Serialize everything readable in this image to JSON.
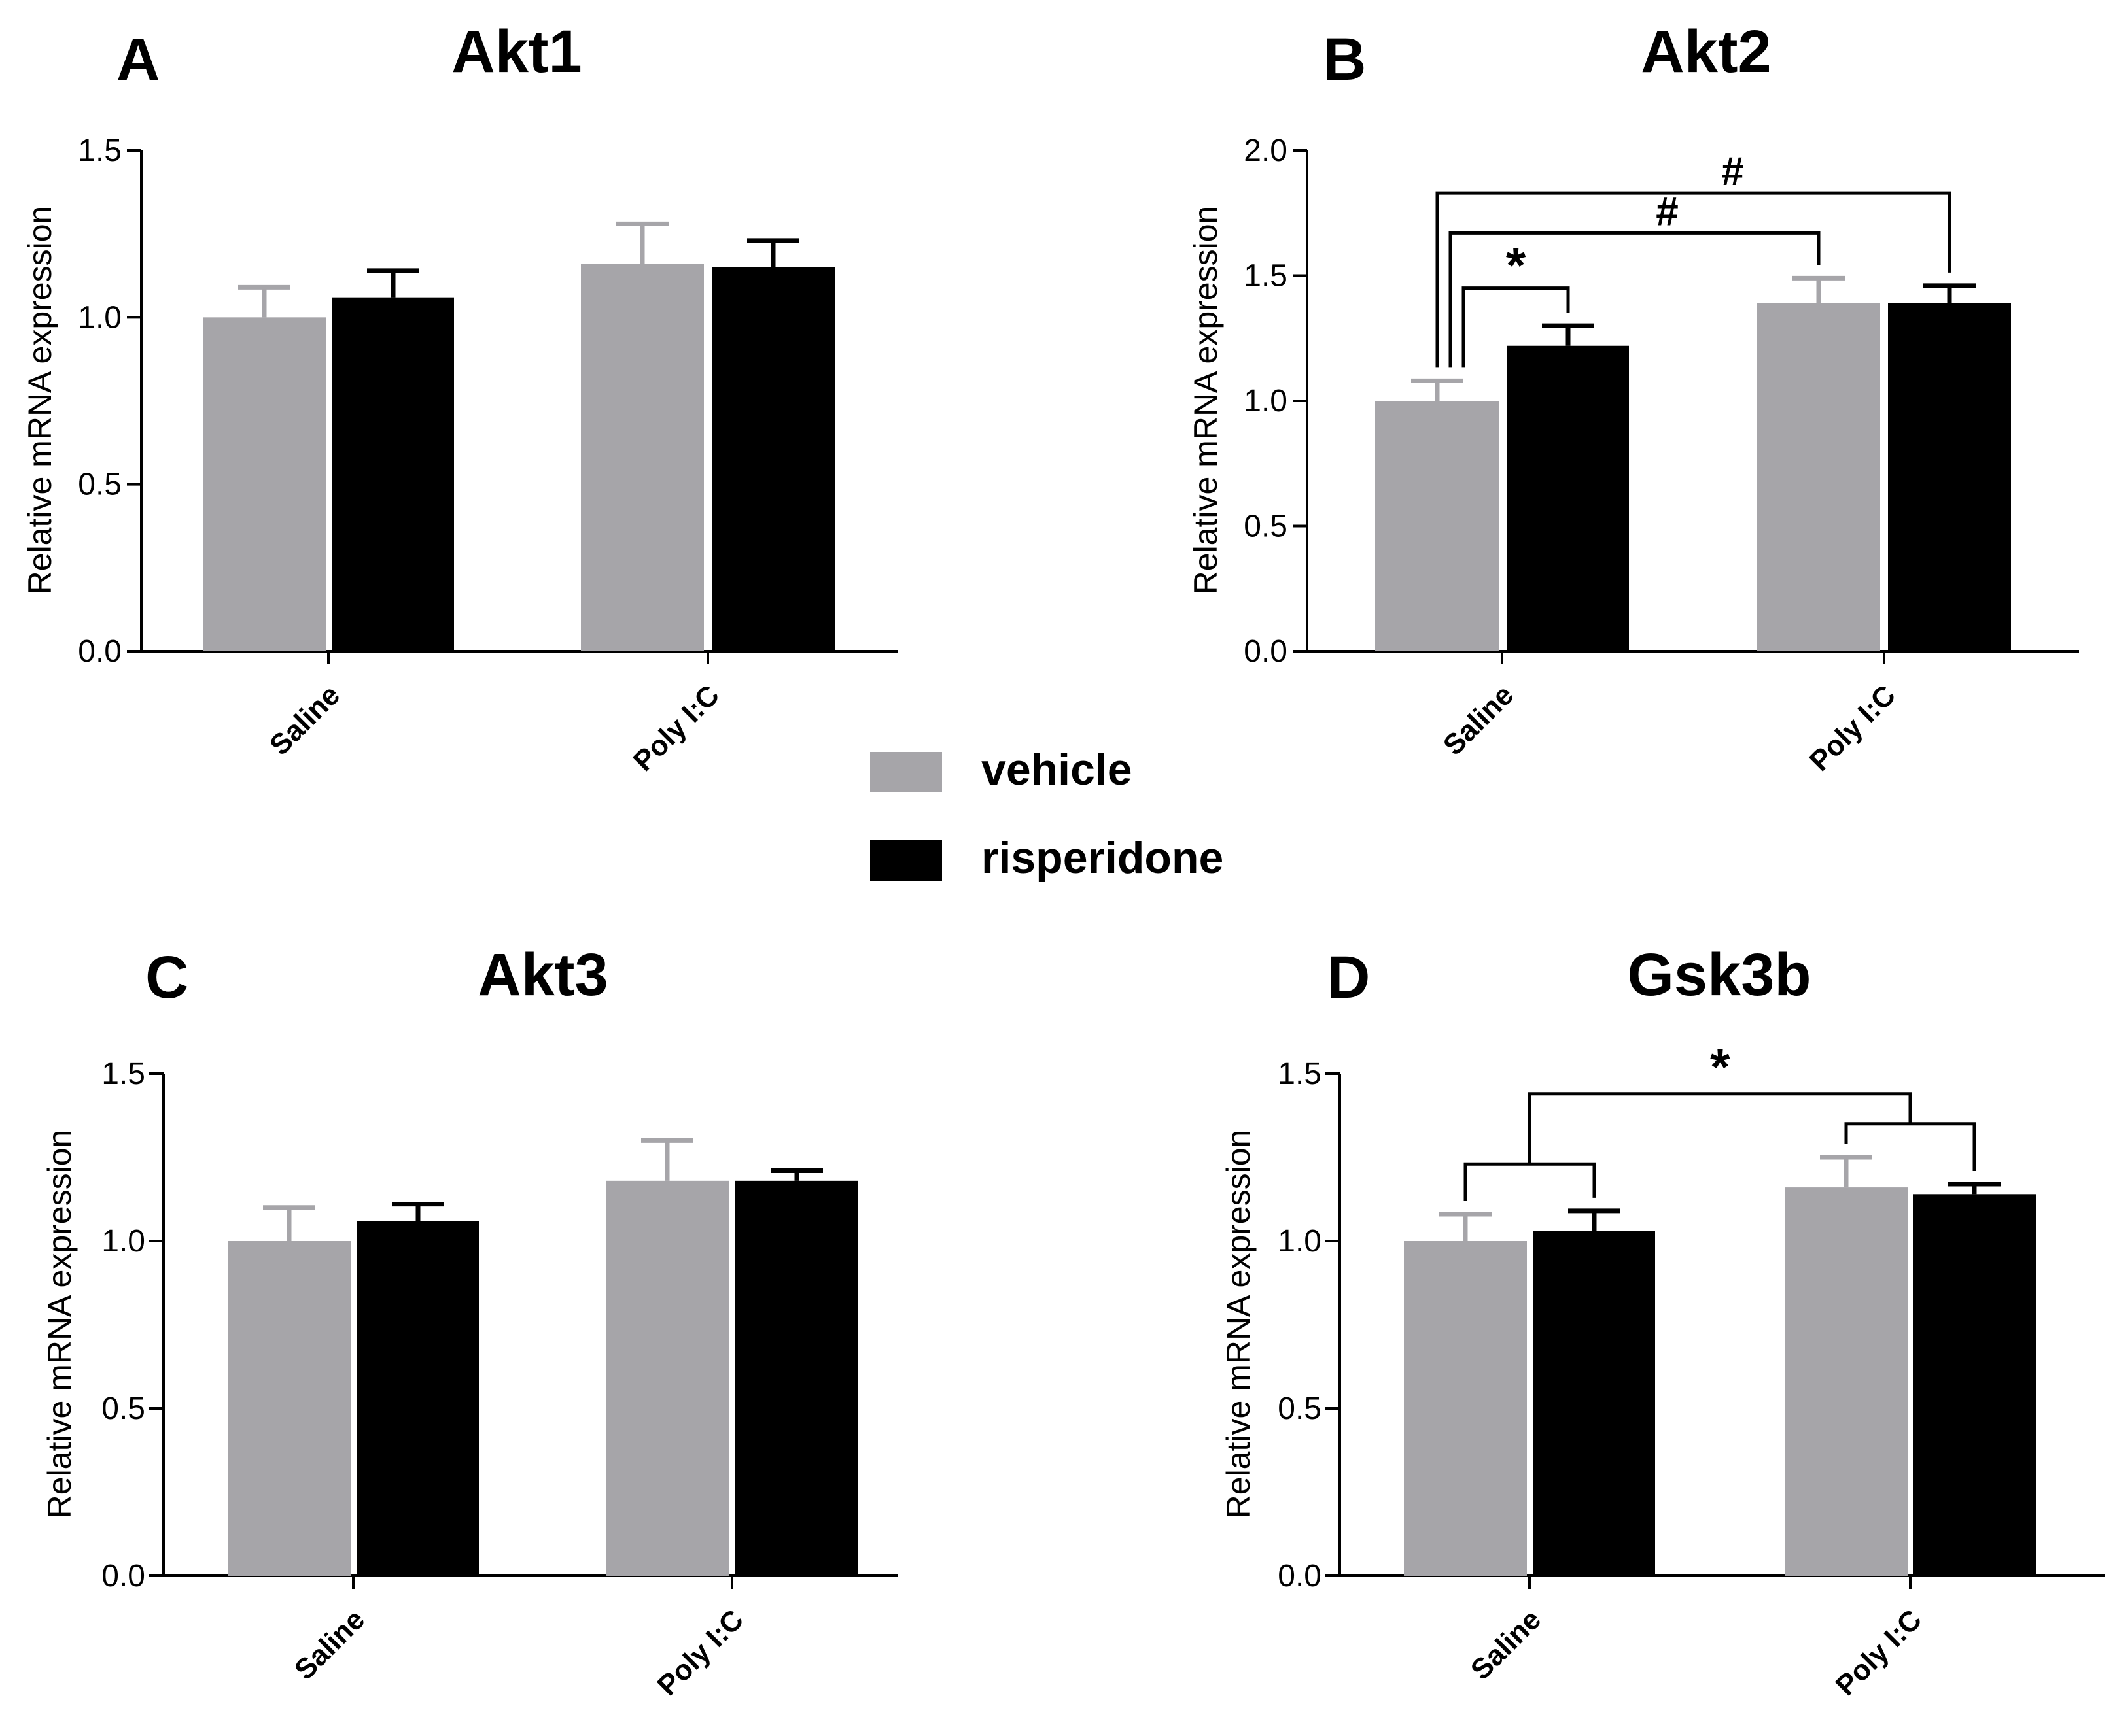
{
  "legend": {
    "items": [
      {
        "label": "vehicle",
        "color": "#a6a5a9"
      },
      {
        "label": "risperidone",
        "color": "#000000"
      }
    ]
  },
  "chart_data": [
    {
      "type": "bar",
      "panel": "A",
      "title": "Akt1",
      "ylabel": "Relative mRNA expression",
      "xlabel": "",
      "ylim": [
        0,
        1.5
      ],
      "yticks": [
        "0.0",
        "0.5",
        "1.0",
        "1.5"
      ],
      "categories": [
        "Saline",
        "Poly I:C"
      ],
      "series": [
        {
          "name": "vehicle",
          "values": [
            1.0,
            1.16
          ],
          "errors": [
            0.09,
            0.12
          ]
        },
        {
          "name": "risperidone",
          "values": [
            1.06,
            1.15
          ],
          "errors": [
            0.08,
            0.08
          ]
        }
      ],
      "annotations": []
    },
    {
      "type": "bar",
      "panel": "B",
      "title": "Akt2",
      "ylabel": "Relative mRNA expression",
      "xlabel": "",
      "ylim": [
        0,
        2.0
      ],
      "yticks": [
        "0.0",
        "0.5",
        "1.0",
        "1.5",
        "2.0"
      ],
      "categories": [
        "Saline",
        "Poly I:C"
      ],
      "series": [
        {
          "name": "vehicle",
          "values": [
            1.0,
            1.39
          ],
          "errors": [
            0.08,
            0.1
          ]
        },
        {
          "name": "risperidone",
          "values": [
            1.22,
            1.39
          ],
          "errors": [
            0.08,
            0.07
          ]
        }
      ],
      "annotations": [
        {
          "label": "*",
          "from": "Saline/vehicle",
          "to": "Saline/risperidone"
        },
        {
          "label": "#",
          "from": "Saline/vehicle",
          "to": "Poly I:C/vehicle"
        },
        {
          "label": "#",
          "from": "Saline/vehicle",
          "to": "Poly I:C/risperidone"
        }
      ]
    },
    {
      "type": "bar",
      "panel": "C",
      "title": "Akt3",
      "ylabel": "Relative mRNA expression",
      "xlabel": "",
      "ylim": [
        0,
        1.5
      ],
      "yticks": [
        "0.0",
        "0.5",
        "1.0",
        "1.5"
      ],
      "categories": [
        "Saline",
        "Poly I:C"
      ],
      "series": [
        {
          "name": "vehicle",
          "values": [
            1.0,
            1.18
          ],
          "errors": [
            0.1,
            0.12
          ]
        },
        {
          "name": "risperidone",
          "values": [
            1.06,
            1.18
          ],
          "errors": [
            0.05,
            0.03
          ]
        }
      ],
      "annotations": []
    },
    {
      "type": "bar",
      "panel": "D",
      "title": "Gsk3b",
      "ylabel": "Relative mRNA expression",
      "xlabel": "",
      "ylim": [
        0,
        1.5
      ],
      "yticks": [
        "0.0",
        "0.5",
        "1.0",
        "1.5"
      ],
      "categories": [
        "Saline",
        "Poly I:C"
      ],
      "series": [
        {
          "name": "vehicle",
          "values": [
            1.0,
            1.16
          ],
          "errors": [
            0.08,
            0.09
          ]
        },
        {
          "name": "risperidone",
          "values": [
            1.03,
            1.14
          ],
          "errors": [
            0.06,
            0.03
          ]
        }
      ],
      "annotations": [
        {
          "label": "*",
          "from": "Saline",
          "to": "Poly I:C"
        }
      ]
    }
  ]
}
